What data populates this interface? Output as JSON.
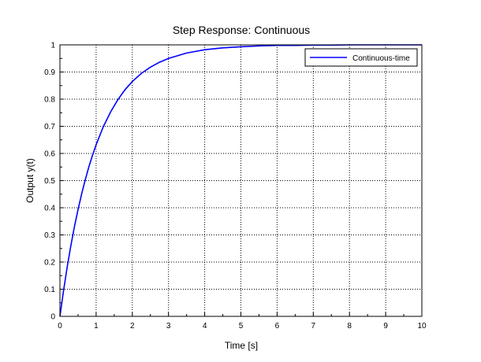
{
  "chart_data": {
    "type": "line",
    "title": "Step Response: Continuous",
    "xlabel": "Time [s]",
    "ylabel": "Output y(t)",
    "xlim": [
      0,
      10
    ],
    "ylim": [
      0,
      1
    ],
    "xticks": [
      "0",
      "1",
      "2",
      "3",
      "4",
      "5",
      "6",
      "7",
      "8",
      "9",
      "10"
    ],
    "yticks": [
      "0",
      "0.1",
      "0.2",
      "0.3",
      "0.4",
      "0.5",
      "0.6",
      "0.7",
      "0.8",
      "0.9",
      "1"
    ],
    "grid": true,
    "legend": {
      "placement": "top-right",
      "entries": [
        "Continuous-time"
      ]
    },
    "series": [
      {
        "name": "Continuous-time",
        "color": "#0000ff",
        "x": [
          0,
          0.1,
          0.2,
          0.3,
          0.4,
          0.5,
          0.6,
          0.7,
          0.8,
          0.9,
          1.0,
          1.2,
          1.4,
          1.6,
          1.8,
          2.0,
          2.25,
          2.5,
          2.75,
          3.0,
          3.5,
          4.0,
          4.5,
          5.0,
          5.5,
          6.0,
          6.5,
          7.0,
          7.5,
          8.0,
          8.5,
          9.0,
          9.5,
          10.0
        ],
        "y": [
          0,
          0.095,
          0.181,
          0.259,
          0.33,
          0.393,
          0.451,
          0.503,
          0.551,
          0.593,
          0.632,
          0.699,
          0.753,
          0.798,
          0.835,
          0.865,
          0.895,
          0.918,
          0.936,
          0.95,
          0.97,
          0.982,
          0.989,
          0.993,
          0.996,
          0.998,
          0.998,
          0.999,
          0.999,
          1.0,
          1.0,
          1.0,
          1.0,
          1.0
        ]
      }
    ]
  }
}
